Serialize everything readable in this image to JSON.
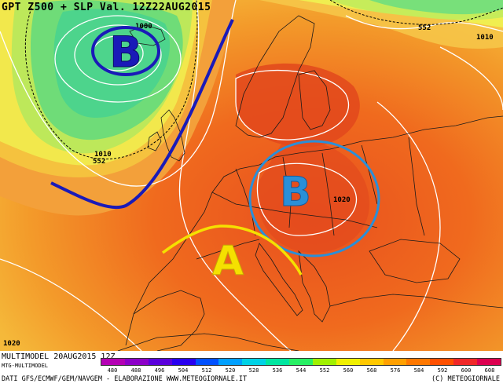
{
  "header": {
    "title": "GPT Z500 + SLP Val. 12Z22AUG2015"
  },
  "map": {
    "contour_labels": [
      "552",
      "1010",
      "1010",
      "552",
      "1000",
      "1020",
      "1020"
    ],
    "annotations": [
      {
        "letter": "B",
        "color": "#1a1ab8",
        "meaning": "low pressure"
      },
      {
        "letter": "B",
        "color": "#2a8fd8",
        "meaning": "low pressure"
      },
      {
        "letter": "A",
        "color": "#f5e000",
        "meaning": "high pressure"
      }
    ]
  },
  "legend": {
    "values": [
      "480",
      "488",
      "496",
      "504",
      "512",
      "520",
      "528",
      "536",
      "544",
      "552",
      "560",
      "568",
      "576",
      "584",
      "592",
      "600",
      "608"
    ],
    "colors": [
      "#b400b4",
      "#8c00c8",
      "#5a00dc",
      "#2800f0",
      "#0050ff",
      "#00a0ff",
      "#00d2e6",
      "#00e6a0",
      "#28f064",
      "#a0f000",
      "#f0f000",
      "#ffc800",
      "#ffa000",
      "#ff7800",
      "#ff5000",
      "#f02828",
      "#dc0050"
    ]
  },
  "footer": {
    "model_line": "MULTIMODEL 20AUG2015 12Z",
    "mtg_line": "MTG-MULTIMODEL",
    "credit_line": "DATI GFS/ECMWF/GEM/NAVGEM - ELABORAZIONE WWW.METEOGIORNALE.IT",
    "copyright": "(C) METEOGIORNALE"
  }
}
